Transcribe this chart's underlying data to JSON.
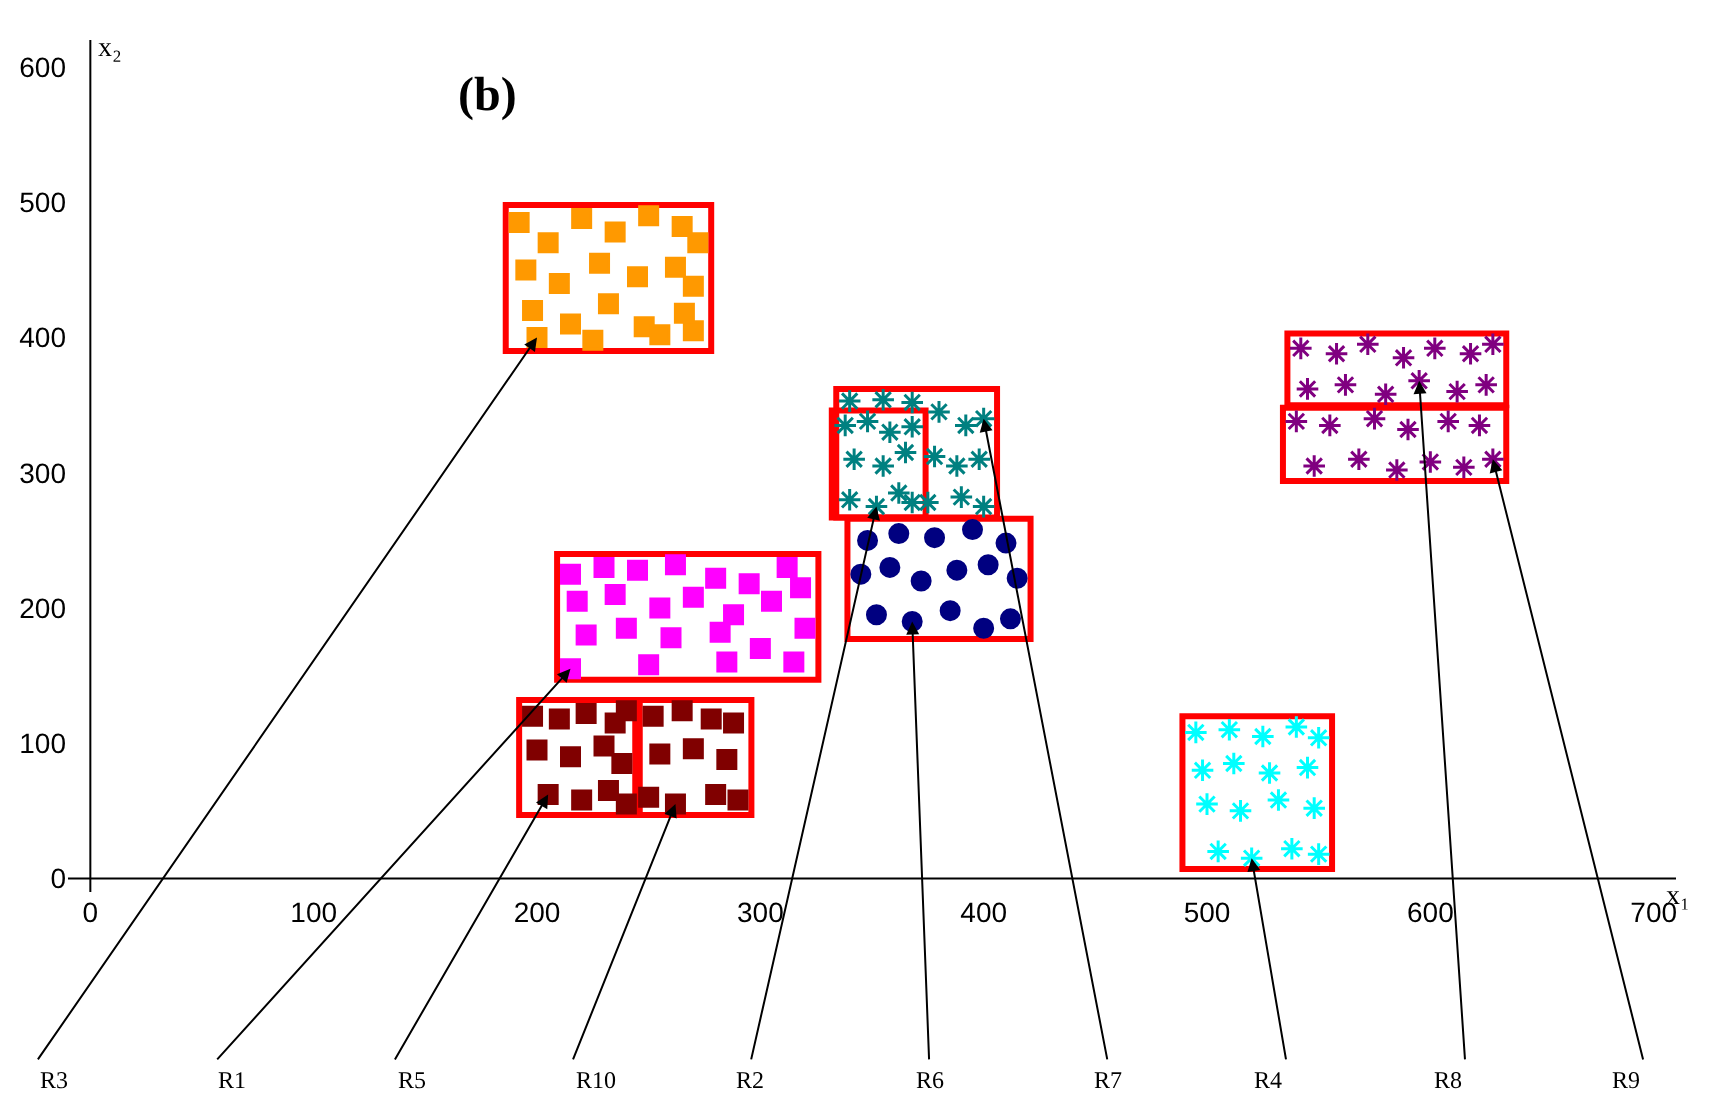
{
  "chart_data": {
    "type": "scatter",
    "title": "(b)",
    "xlabel": "x₁",
    "ylabel": "x₂",
    "xlim": [
      -10,
      710
    ],
    "ylim": [
      -10,
      620
    ],
    "xticks": [
      0,
      100,
      200,
      300,
      400,
      500,
      600,
      700
    ],
    "yticks": [
      0,
      100,
      200,
      300,
      400,
      500,
      600
    ],
    "series": [
      {
        "color": "#ff9900",
        "marker": "square",
        "x": [
          192,
          205,
          220,
          235,
          250,
          265,
          272,
          195,
          210,
          228,
          245,
          262,
          270,
          198,
          215,
          232,
          248,
          266,
          200,
          225,
          255,
          270
        ],
        "values": [
          485,
          470,
          488,
          478,
          490,
          482,
          470,
          450,
          440,
          455,
          445,
          452,
          438,
          420,
          410,
          425,
          408,
          418,
          400,
          398,
          402,
          405
        ]
      },
      {
        "color": "#ff00ff",
        "marker": "square",
        "x": [
          215,
          230,
          245,
          262,
          280,
          295,
          312,
          218,
          235,
          255,
          270,
          288,
          305,
          318,
          222,
          240,
          260,
          282,
          300,
          320,
          215,
          250,
          285,
          315
        ],
        "values": [
          225,
          230,
          228,
          232,
          222,
          218,
          230,
          205,
          210,
          200,
          208,
          195,
          205,
          215,
          180,
          185,
          178,
          182,
          170,
          185,
          155,
          158,
          160,
          160
        ]
      },
      {
        "color": "#800000",
        "marker": "square",
        "x": [
          198,
          210,
          222,
          235,
          240,
          200,
          215,
          230,
          238,
          205,
          220,
          232,
          240
        ],
        "values": [
          120,
          118,
          122,
          115,
          124,
          95,
          90,
          98,
          85,
          62,
          58,
          65,
          55
        ]
      },
      {
        "color": "#800000",
        "marker": "square",
        "x": [
          252,
          265,
          278,
          288,
          255,
          270,
          285,
          250,
          262,
          280,
          290
        ],
        "values": [
          120,
          124,
          118,
          115,
          92,
          96,
          88,
          60,
          55,
          62,
          58
        ]
      },
      {
        "color": "#008080",
        "marker": "cross",
        "x": [
          338,
          348,
          358,
          368,
          342,
          355,
          365,
          340,
          352,
          362,
          368
        ],
        "values": [
          335,
          338,
          330,
          334,
          310,
          305,
          315,
          280,
          275,
          285,
          278
        ]
      },
      {
        "color": "#000080",
        "marker": "circle",
        "x": [
          348,
          362,
          378,
          395,
          410,
          345,
          358,
          372,
          388,
          402,
          415,
          352,
          368,
          385,
          400,
          412
        ],
        "values": [
          250,
          255,
          252,
          258,
          248,
          225,
          230,
          220,
          228,
          232,
          222,
          195,
          190,
          198,
          185,
          192
        ]
      },
      {
        "color": "#008080",
        "marker": "cross",
        "x": [
          340,
          355,
          368,
          380,
          392,
          400,
          378,
          388,
          398,
          375,
          390,
          400
        ],
        "values": [
          353,
          354,
          352,
          345,
          335,
          340,
          312,
          305,
          310,
          278,
          282,
          275
        ]
      },
      {
        "color": "#00ffff",
        "marker": "cross",
        "x": [
          495,
          510,
          525,
          540,
          550,
          498,
          512,
          528,
          545,
          500,
          515,
          532,
          548,
          505,
          520,
          538,
          550
        ],
        "values": [
          108,
          110,
          105,
          112,
          104,
          80,
          85,
          78,
          82,
          55,
          50,
          58,
          52,
          20,
          15,
          22,
          18
        ]
      },
      {
        "color": "#800080",
        "marker": "cross",
        "x": [
          542,
          558,
          572,
          588,
          602,
          618,
          628,
          545,
          562,
          580,
          595,
          612,
          625
        ],
        "values": [
          392,
          388,
          395,
          385,
          392,
          388,
          395,
          362,
          365,
          358,
          368,
          360,
          365
        ]
      },
      {
        "color": "#800080",
        "marker": "cross",
        "x": [
          540,
          555,
          575,
          590,
          608,
          622,
          548,
          568,
          585,
          600,
          615,
          628
        ],
        "values": [
          338,
          335,
          340,
          332,
          338,
          335,
          305,
          310,
          302,
          308,
          304,
          310
        ]
      }
    ],
    "annotations": [
      {
        "text": "R3",
        "x": 200,
        "y": 400
      },
      {
        "text": "R1",
        "x": 215,
        "y": 155
      },
      {
        "text": "R5",
        "x": 205,
        "y": 62
      },
      {
        "text": "R10",
        "x": 262,
        "y": 55
      },
      {
        "text": "R2",
        "x": 352,
        "y": 275
      },
      {
        "text": "R6",
        "x": 368,
        "y": 190
      },
      {
        "text": "R7",
        "x": 400,
        "y": 340
      },
      {
        "text": "R4",
        "x": 520,
        "y": 15
      },
      {
        "text": "R8",
        "x": 595,
        "y": 368
      },
      {
        "text": "R9",
        "x": 628,
        "y": 310
      }
    ]
  }
}
